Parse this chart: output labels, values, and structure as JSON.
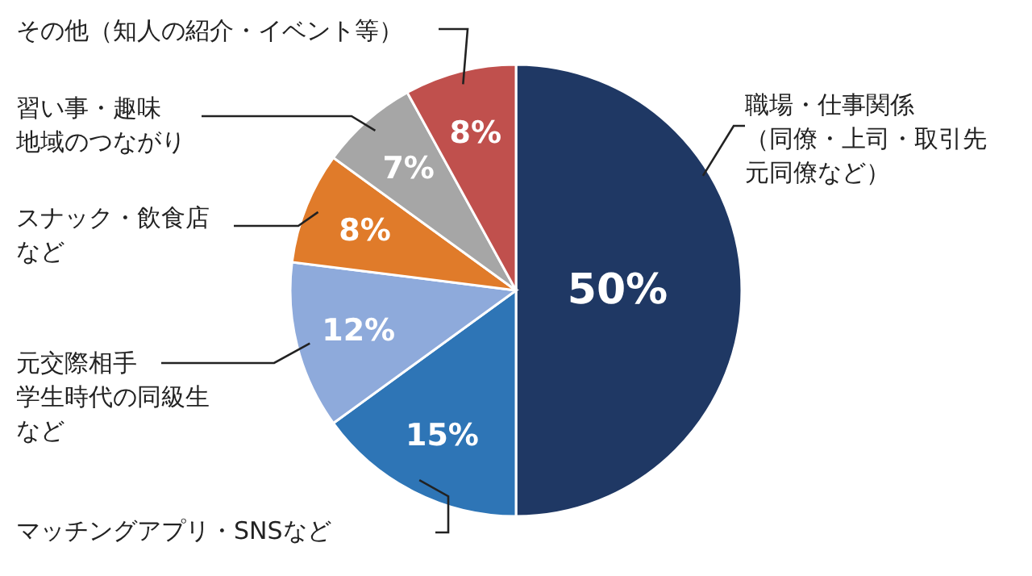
{
  "chart_data": {
    "type": "pie",
    "categories": [
      "職場・仕事関係（同僚・上司・取引先元同僚など）",
      "マッチングアプリ・SNSなど",
      "元交際相手学生時代の同級生など",
      "スナック・飲食店など",
      "習い事・趣味地域のつながり",
      "その他（知人の紹介・イベント等）"
    ],
    "values": [
      50,
      15,
      12,
      8,
      7,
      8
    ],
    "value_labels": [
      "50%",
      "15%",
      "12%",
      "8%",
      "7%",
      "8%"
    ],
    "colors": [
      "#1f3864",
      "#2e75b6",
      "#8eaadb",
      "#e07b2a",
      "#a6a6a6",
      "#c0504d"
    ]
  }
}
